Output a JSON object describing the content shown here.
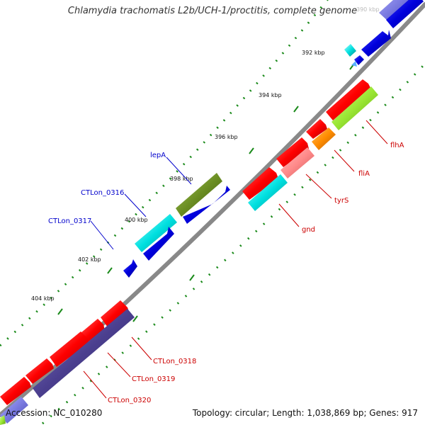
{
  "title": "Chlamydia trachomatis L2b/UCH-1/proctitis, complete genome",
  "accession_text": "Accession: NC_010280",
  "summary_text": "Topology: circular; Length: 1,038,869 bp; Genes: 917",
  "colors": {
    "backbone": "#808080",
    "tick": "#1a8a1a",
    "red": "#ff0000",
    "blue": "#0000cc",
    "cyan": "#00e5e5",
    "olive": "#6b8e23",
    "salmon": "#ff8a8a",
    "orange": "#ff8c00",
    "lime": "#99e633",
    "purple": "#4b3f8f",
    "label_blue": "#0000cc",
    "label_red": "#cc0000"
  },
  "kbp_labels": [
    "390 kbp",
    "392 kbp",
    "394 kbp",
    "396 kbp",
    "398 kbp",
    "400 kbp",
    "402 kbp",
    "404 kbp"
  ],
  "genes": [
    {
      "label": "flhA",
      "color": "#cc0000"
    },
    {
      "label": "fliA",
      "color": "#cc0000"
    },
    {
      "label": "tyrS",
      "color": "#cc0000"
    },
    {
      "label": "gnd",
      "color": "#cc0000"
    },
    {
      "label": "lepA",
      "color": "#0000cc"
    },
    {
      "label": "CTLon_0316",
      "color": "#0000cc"
    },
    {
      "label": "CTLon_0317",
      "color": "#0000cc"
    },
    {
      "label": "CTLon_0318",
      "color": "#cc0000"
    },
    {
      "label": "CTLon_0319",
      "color": "#cc0000"
    },
    {
      "label": "CTLon_0320",
      "color": "#cc0000"
    }
  ]
}
